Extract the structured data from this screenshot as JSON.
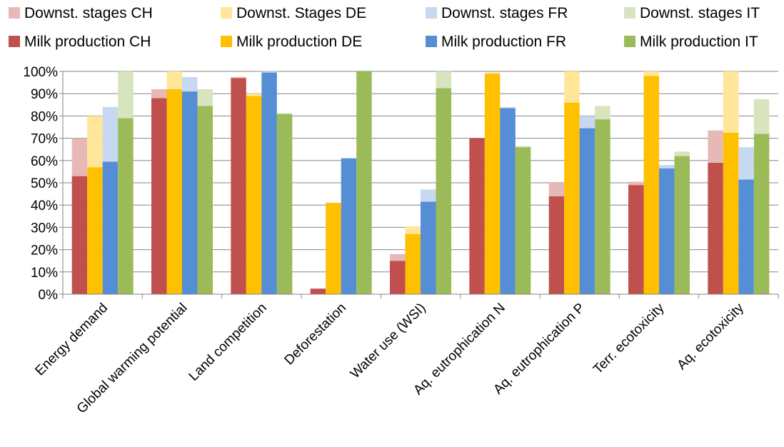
{
  "chart_data": {
    "type": "bar",
    "stacked": true,
    "categories": [
      "Energy demand",
      "Global warming potential",
      "Land competition",
      "Deforestation",
      "Water use (WSI)",
      "Aq. eutrophication N",
      "Aq. eutrophication P",
      "Terr. ecotoxicity",
      "Aq. ecotoxicity"
    ],
    "ylim": [
      0,
      100
    ],
    "yticks": [
      "0%",
      "10%",
      "20%",
      "30%",
      "40%",
      "50%",
      "60%",
      "70%",
      "80%",
      "90%",
      "100%"
    ],
    "grid": true,
    "legend_position": "top",
    "groups": [
      {
        "country": "CH",
        "milk_name": "Milk production CH",
        "down_name": "Downst. stages CH",
        "milk_color": "#c0504d",
        "down_color": "#e6b9b8",
        "milk": [
          53,
          88,
          97,
          2.5,
          15,
          70,
          44,
          49,
          59
        ],
        "total": [
          70,
          92,
          97.5,
          2.5,
          18,
          70,
          50,
          50.5,
          73.5
        ]
      },
      {
        "country": "DE",
        "milk_name": "Milk production DE",
        "down_name": "Downst. Stages DE",
        "milk_color": "#ffc000",
        "down_color": "#ffe699",
        "milk": [
          57,
          92,
          89,
          41,
          27,
          99,
          86,
          98,
          72.5
        ],
        "total": [
          80,
          100,
          90,
          41,
          30.5,
          99.5,
          100,
          100,
          100
        ]
      },
      {
        "country": "FR",
        "milk_name": "Milk production FR",
        "down_name": "Downst. stages FR",
        "milk_color": "#558ed5",
        "down_color": "#c6d9f1",
        "milk": [
          59.5,
          91,
          99.5,
          61,
          41.5,
          83.5,
          74.5,
          56.5,
          51.5
        ],
        "total": [
          84,
          97.5,
          100,
          61,
          47,
          84,
          80,
          58,
          66
        ]
      },
      {
        "country": "IT",
        "milk_name": "Milk production IT",
        "down_name": "Downst. stages IT",
        "milk_color": "#9bbb59",
        "down_color": "#d7e4bd",
        "milk": [
          79,
          84.5,
          81,
          100,
          92.5,
          66,
          78.5,
          62,
          72
        ],
        "total": [
          100,
          92,
          81,
          100,
          100,
          66.5,
          84.5,
          64,
          87.5
        ]
      }
    ],
    "legend": [
      {
        "label": "Downst. stages CH",
        "color": "#e6b9b8"
      },
      {
        "label": "Downst. Stages DE",
        "color": "#ffe699"
      },
      {
        "label": "Downst. stages FR",
        "color": "#c6d9f1"
      },
      {
        "label": "Downst. stages IT",
        "color": "#d7e4bd"
      },
      {
        "label": "Milk production CH",
        "color": "#c0504d"
      },
      {
        "label": "Milk production DE",
        "color": "#ffc000"
      },
      {
        "label": "Milk production FR",
        "color": "#558ed5"
      },
      {
        "label": "Milk production IT",
        "color": "#9bbb59"
      }
    ]
  }
}
